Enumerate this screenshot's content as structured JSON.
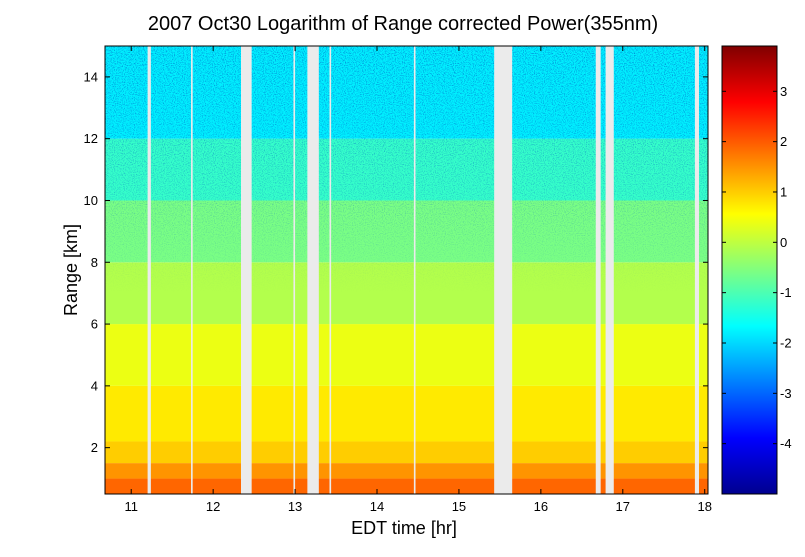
{
  "chart_data": {
    "type": "heatmap",
    "title": "2007 Oct30  Logarithm of Range corrected Power(355nm)",
    "xlabel": "EDT time [hr]",
    "ylabel": "Range [km]",
    "xlim": [
      10.68,
      18.04
    ],
    "ylim": [
      0.5,
      15.0
    ],
    "xticks": [
      11,
      12,
      13,
      14,
      15,
      16,
      17,
      18
    ],
    "yticks": [
      2,
      4,
      6,
      8,
      10,
      12,
      14
    ],
    "colorbar": {
      "range": [
        -5.0,
        3.9
      ],
      "ticks": [
        -4,
        -3,
        -2,
        -1,
        0,
        1,
        2,
        3
      ],
      "colormap": "jet"
    },
    "data_gaps_hr": [
      [
        11.2,
        11.24
      ],
      [
        11.73,
        11.75
      ],
      [
        12.34,
        12.47
      ],
      [
        12.98,
        13.0
      ],
      [
        13.15,
        13.29
      ],
      [
        13.42,
        13.44
      ],
      [
        14.45,
        14.47
      ],
      [
        15.43,
        15.65
      ],
      [
        16.67,
        16.73
      ],
      [
        16.79,
        16.89
      ],
      [
        17.88,
        17.93
      ]
    ],
    "profile_segments": [
      {
        "range_km": [
          0.5,
          1.0
        ],
        "log_power": 1.9
      },
      {
        "range_km": [
          1.0,
          1.5
        ],
        "log_power": 1.5
      },
      {
        "range_km": [
          1.5,
          2.2
        ],
        "log_power": 1.0
      },
      {
        "range_km": [
          2.2,
          4.0
        ],
        "log_power": 0.75
      },
      {
        "range_km": [
          4.0,
          6.0
        ],
        "log_power": 0.4
      },
      {
        "range_km": [
          6.0,
          8.0
        ],
        "log_power": -0.1
      },
      {
        "range_km": [
          8.0,
          10.0
        ],
        "log_power": -0.6
      },
      {
        "range_km": [
          10.0,
          12.0
        ],
        "log_power": -1.2
      },
      {
        "range_km": [
          12.0,
          15.0
        ],
        "log_power": -1.8
      }
    ],
    "colors": {
      "gap": "#ebebeb"
    }
  }
}
